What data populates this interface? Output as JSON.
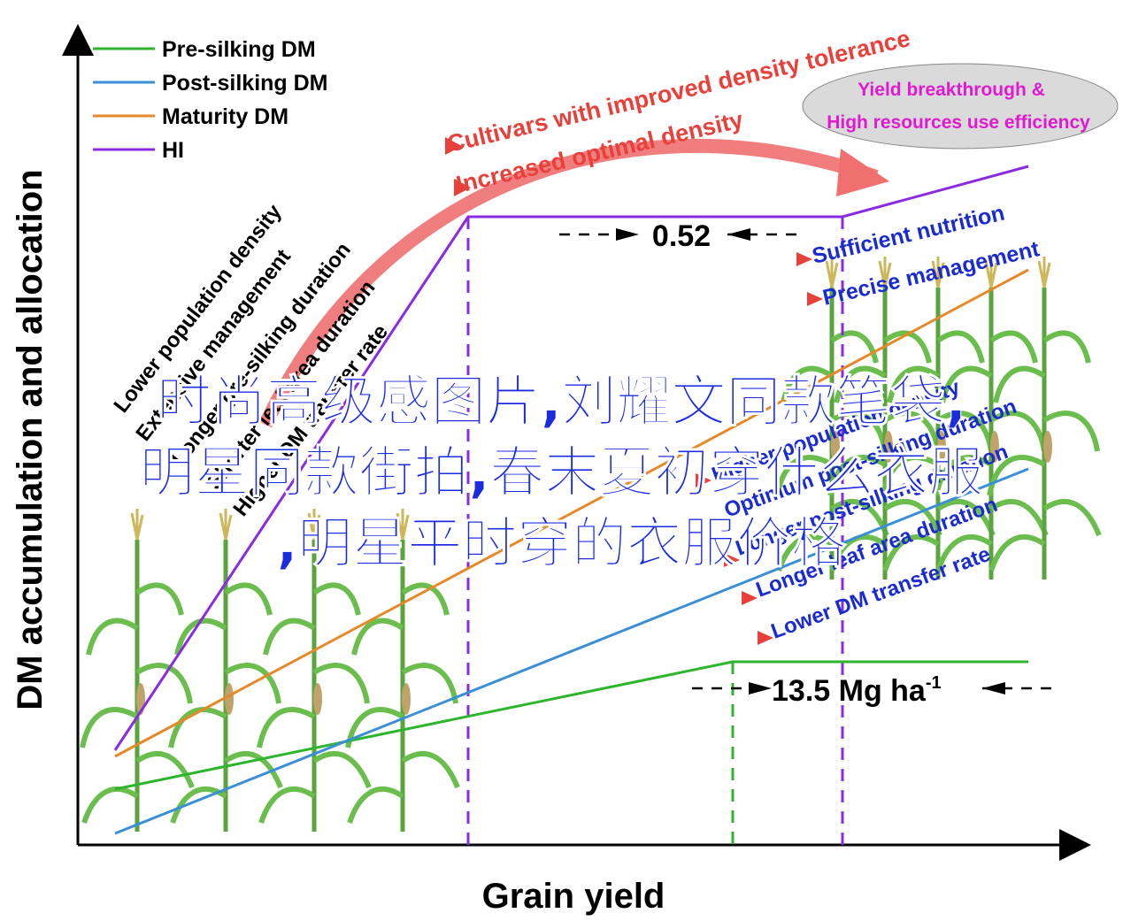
{
  "axes": {
    "xlabel": "Grain yield",
    "ylabel": "DM accumulation and allocation"
  },
  "legend": [
    {
      "label": "Pre-silking DM",
      "color": "#2db52d"
    },
    {
      "label": "Post-silking DM",
      "color": "#3a8fd6"
    },
    {
      "label": "Maturity DM",
      "color": "#e58a2a"
    },
    {
      "label": "HI",
      "color": "#8a2be2"
    }
  ],
  "left_factors": [
    "Lower population density",
    "Extensive management",
    "Longer pre-silking duration",
    "Shorter leaf area duration",
    "Higher DM transfer rate"
  ],
  "arrow_labels": [
    "Cultivars with improved density tolerance",
    "Increased optimal density"
  ],
  "ellipse_text": [
    "Yield breakthrough &",
    "High resources use efficiency"
  ],
  "right_top_factors": [
    "Sufficient nutrition",
    "Precise management"
  ],
  "right_bottom_factors": [
    "Higher population density",
    "Optimum post-silking duration",
    "Longer post-silking duration",
    "Longer leaf area duration",
    "Lower DM transfer rate"
  ],
  "annotations": {
    "hi_value": "0.52",
    "yield_value": "13.5 Mg ha",
    "yield_sup": "-1"
  },
  "overlay_text": [
    "时尚高级感图片,刘耀文同款笔袋,",
    "明星同款街拍,春末夏初穿什么衣服",
    ",明星平时穿的衣服价格"
  ],
  "colors": {
    "pre": "#2db52d",
    "post": "#3a8fd6",
    "maturity": "#e58a2a",
    "hi": "#8a2be2",
    "red": "#e8403a",
    "arrow": "#f07070",
    "blue_text": "#1a2bd0",
    "magenta": "#e01ad0"
  }
}
